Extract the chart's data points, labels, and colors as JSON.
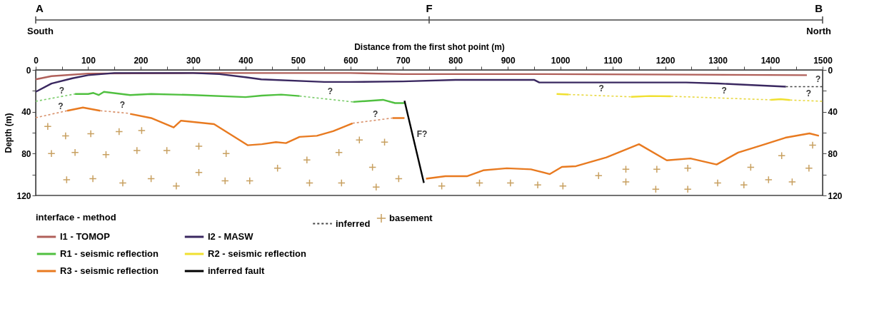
{
  "chart_data": {
    "type": "line",
    "xlabel": "Distance from the first shot point (m)",
    "ylabel": "Depth (m)",
    "legend_title": "interface - method",
    "legend": "bottom",
    "grid": false,
    "xlim": [
      0,
      1500
    ],
    "xticks": [
      0,
      {
        "value": 50,
        "label": null
      },
      100,
      {
        "value": 150,
        "label": null
      },
      200,
      {
        "value": 250,
        "label": null
      },
      300,
      {
        "value": 350,
        "label": null
      },
      400,
      {
        "value": 450,
        "label": null
      },
      500,
      {
        "value": 550,
        "label": null
      },
      600,
      {
        "value": 650,
        "label": null
      },
      700,
      {
        "value": 750,
        "label": null
      },
      800,
      {
        "value": 850,
        "label": null
      },
      900,
      {
        "value": 950,
        "label": null
      },
      1000,
      {
        "value": 1050,
        "label": null
      },
      1100,
      {
        "value": 1150,
        "label": null
      },
      1200,
      {
        "value": 1250,
        "label": null
      },
      1300,
      {
        "value": 1350,
        "label": null
      },
      1400,
      {
        "value": 1450,
        "label": null
      },
      1500
    ],
    "ylim": [
      120,
      0
    ],
    "yticks": [
      0,
      {
        "value": 20,
        "label": null
      },
      40,
      {
        "value": 60,
        "label": null
      },
      80,
      {
        "value": 100,
        "label": null
      },
      120
    ],
    "y2lim": [
      120,
      0
    ],
    "y2ticks": [
      0,
      {
        "value": 20,
        "label": null
      },
      40,
      {
        "value": 60,
        "label": null
      },
      80,
      {
        "value": 100,
        "label": null
      },
      120
    ],
    "series": [
      {
        "name": "I1 - TOMOP",
        "color": "#b0605a",
        "line_style": "solid",
        "x": [
          0,
          30,
          100,
          300,
          600,
          700,
          960,
          1240,
          1470
        ],
        "values": [
          9,
          6,
          3.5,
          3,
          3,
          4,
          4,
          4.5,
          5
        ]
      },
      {
        "name": "I2 - MASW",
        "color": "#3a2860",
        "line_style": "solid",
        "x": [
          0,
          30,
          70,
          100,
          150,
          300,
          350,
          400,
          430,
          550,
          600,
          700,
          800,
          950,
          960,
          1000,
          1240,
          1300,
          1430
        ],
        "values": [
          21,
          13,
          8,
          5,
          3,
          3,
          4,
          7,
          9,
          11.5,
          11.5,
          11,
          9.5,
          9.5,
          12,
          12,
          12,
          13,
          16
        ]
      },
      {
        "name": "R1 - seismic reflection",
        "color": "#50c040",
        "line_style": "solid",
        "x": [
          75,
          100,
          110,
          120,
          130,
          180,
          220,
          300,
          400,
          431,
          468,
          503,
          550,
          605,
          662,
          685,
          703
        ],
        "values": [
          23,
          23,
          22,
          24,
          21,
          24,
          23,
          24,
          26,
          24.5,
          23.6,
          25,
          null,
          30.6,
          28.6,
          31.7,
          31.7
        ]
      },
      {
        "name": "R2 - seismic reflection",
        "color": "#f0e030",
        "line_style": "solid",
        "x": [
          993,
          1016,
          1100,
          1135,
          1170,
          1211,
          1300,
          1401,
          1420,
          1438
        ],
        "values": [
          23,
          23.5,
          null,
          25.7,
          25,
          25.2,
          null,
          28.6,
          28,
          28.8
        ]
      },
      {
        "name": "R3 - seismic reflection",
        "color": "#e87a20",
        "line_style": "solid",
        "x": [
          60,
          90,
          123,
          150,
          180,
          220,
          263,
          277,
          340,
          404,
          431,
          458,
          477,
          503,
          536,
          567,
          604,
          640,
          680,
          703,
          720,
          744,
          781,
          822,
          853,
          898,
          944,
          980,
          1003,
          1030,
          1088,
          1150,
          1203,
          1248,
          1298,
          1339,
          1384,
          1429,
          1475,
          1493
        ],
        "values": [
          39,
          36,
          39,
          null,
          42,
          46,
          55,
          48.5,
          51.8,
          72,
          71,
          69,
          70,
          64,
          63,
          58.6,
          51,
          null,
          46,
          46,
          null,
          104,
          101.6,
          101.6,
          96,
          94,
          95,
          99.6,
          92.7,
          92,
          83.6,
          71,
          86.4,
          84.6,
          90.4,
          79,
          72,
          64.8,
          60.7,
          63
        ]
      },
      {
        "name": "inferred",
        "color": "#444444",
        "line_style": "dotted",
        "x": [
          1430,
          1500
        ],
        "values": [
          16,
          16
        ]
      },
      {
        "name": "basement",
        "type": "scatter",
        "color": "#c8a060",
        "marker": "cross",
        "x": [
          23,
          57,
          105,
          159,
          202,
          30,
          75,
          134,
          193,
          250,
          311,
          363,
          59,
          109,
          166,
          220,
          268,
          311,
          361,
          408,
          461,
          517,
          522,
          578,
          583,
          617,
          665,
          642,
          649,
          692,
          774,
          846,
          905,
          957,
          1005,
          1073,
          1125,
          1125,
          1184,
          1182,
          1243,
          1243,
          1300,
          1350,
          1363,
          1397,
          1422,
          1442,
          1474,
          1481
        ],
        "values": [
          54,
          63,
          61,
          59,
          58,
          80,
          79,
          81,
          77,
          77,
          73,
          80,
          105,
          104,
          108,
          104,
          111,
          98,
          106,
          106,
          94,
          86,
          108,
          79,
          108,
          67,
          69,
          93,
          112,
          104,
          111,
          108,
          108,
          110,
          111,
          101,
          95,
          107,
          95,
          114,
          94,
          114,
          108,
          110,
          93,
          105,
          82,
          107,
          94,
          72
        ]
      },
      {
        "name": "inferred fault",
        "color": "#000000",
        "line_style": "solid",
        "x": [
          703,
          740
        ],
        "values": [
          29.5,
          108
        ]
      },
      {
        "color": "#7acc6a",
        "line_style": "dotted",
        "x": [
          0,
          75
        ],
        "values": [
          30,
          23
        ]
      },
      {
        "color": "#7acc6a",
        "line_style": "dotted",
        "x": [
          503,
          605
        ],
        "values": [
          25,
          30.6
        ]
      },
      {
        "color": "#d8906a",
        "line_style": "dotted",
        "x": [
          0,
          60
        ],
        "values": [
          45.7,
          39
        ]
      },
      {
        "color": "#d8906a",
        "line_style": "dotted",
        "x": [
          123,
          180
        ],
        "values": [
          39,
          41.6
        ]
      },
      {
        "color": "#d8906a",
        "line_style": "dotted",
        "x": [
          604,
          680
        ],
        "values": [
          51,
          46
        ]
      },
      {
        "color": "#e8d840",
        "line_style": "dotted",
        "x": [
          1016,
          1135,
          1170,
          1211,
          1401,
          1420,
          1438,
          1500
        ],
        "values": [
          23.5,
          25.7,
          null,
          25.2,
          28.6,
          null,
          28.8,
          30
        ]
      }
    ],
    "annotations": [
      "A",
      "F",
      "B",
      "South",
      "North",
      {
        "text": "?",
        "x": 39,
        "y": 26.4
      },
      {
        "text": "?",
        "x": 551,
        "y": 27.6
      },
      {
        "text": "?",
        "x": 37,
        "y": 41.6
      },
      {
        "text": "?",
        "x": 155,
        "y": 40.5
      },
      {
        "text": "?",
        "x": 637,
        "y": 48.8
      },
      {
        "text": "?",
        "x": 1068,
        "y": 24.5
      },
      {
        "text": "?",
        "x": 1302,
        "y": 26.8
      },
      {
        "text": "?",
        "x": 1463,
        "y": 29.3
      },
      {
        "text": "?",
        "x": 1481,
        "y": 16
      },
      {
        "text": "F?",
        "x": 721,
        "y": 68
      }
    ]
  }
}
